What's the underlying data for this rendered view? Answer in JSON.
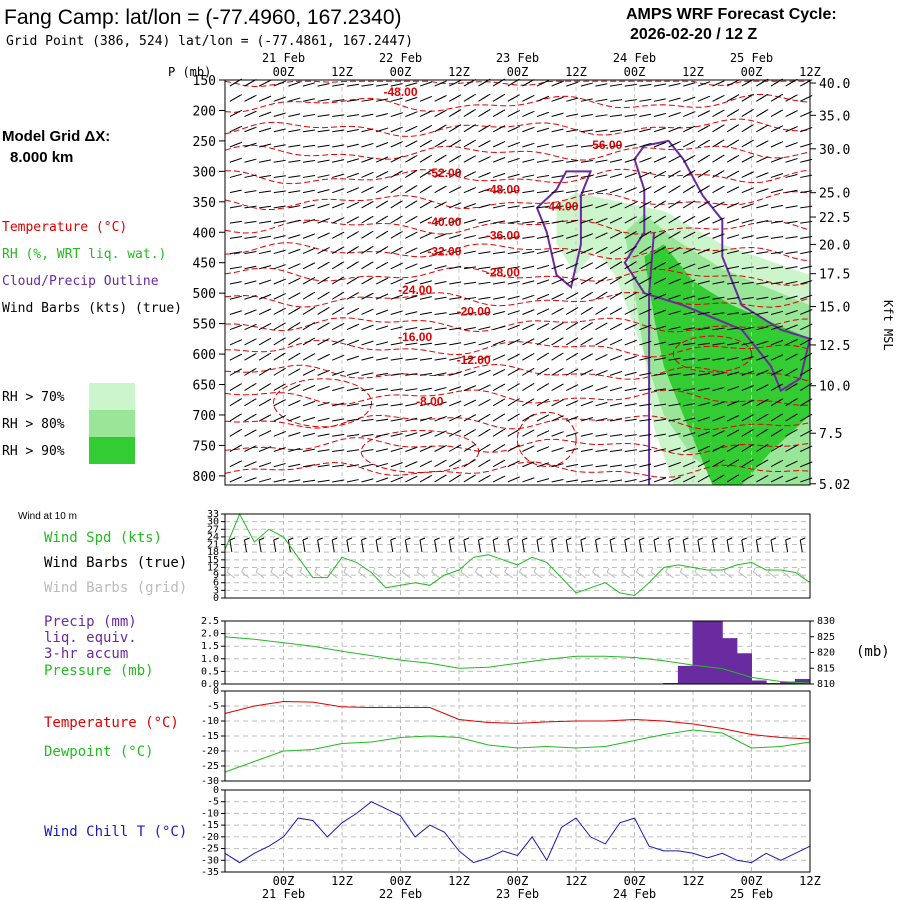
{
  "header": {
    "title": "Fang Camp:  lat/lon = (-77.4960, 167.2340)",
    "subtitle": "Grid Point (386, 524) lat/lon = (-77.4861, 167.2447)",
    "cycle_line1": "AMPS WRF Forecast Cycle:",
    "cycle_line2": "2026-02-20 / 12  Z"
  },
  "left_labels": {
    "model_grid_1": "Model Grid ΔX:",
    "model_grid_2": "8.000 km",
    "temperature": "Temperature (°C)",
    "rh": "RH (%, WRT liq. wat.)",
    "cloud": "Cloud/Precip Outline",
    "wind": "Wind Barbs (kts) (true)",
    "rh70": "RH > 70%",
    "rh80": "RH > 80%",
    "rh90": "RH > 90%"
  },
  "colors": {
    "temp": "#e00000",
    "rh70": "#ccf5cc",
    "rh80": "#99e699",
    "rh90": "#33cc33",
    "cloud": "#6a2aa0",
    "spd": "#22bb22",
    "grid_barb": "#bbbbbb",
    "precip": "#6a2aa0",
    "chill": "#1a1ab8"
  },
  "time_axis": {
    "top_hours": [
      "00Z",
      "12Z",
      "00Z",
      "12Z",
      "00Z",
      "12Z",
      "00Z",
      "12Z",
      "00Z",
      "12Z"
    ],
    "top_dates": [
      "21 Feb",
      "22 Feb",
      "23 Feb",
      "24 Feb",
      "25 Feb"
    ],
    "bottom_hours": [
      "00Z",
      "12Z",
      "00Z",
      "12Z",
      "00Z",
      "12Z",
      "00Z",
      "12Z",
      "00Z",
      "12Z"
    ],
    "bottom_dates": [
      "21 Feb",
      "22 Feb",
      "23 Feb",
      "24 Feb",
      "25 Feb"
    ],
    "hour_positions": [
      12,
      24,
      36,
      48,
      60,
      72,
      84,
      96,
      108,
      120
    ],
    "date_positions": [
      12,
      36,
      60,
      84,
      108
    ],
    "range": [
      0,
      120
    ]
  },
  "chart_data": [
    {
      "type": "time-height",
      "title": "Fang Camp:  lat/lon = (-77.4960, 167.2340)",
      "ylabel": "P (mb)",
      "y2label": "Kft MSL",
      "pressure_ticks": [
        "150",
        "200",
        "250",
        "300",
        "350",
        "400",
        "450",
        "500",
        "550",
        "600",
        "650",
        "700",
        "750",
        "800"
      ],
      "pressure_values": [
        150,
        200,
        250,
        300,
        350,
        400,
        450,
        500,
        550,
        600,
        650,
        700,
        750,
        800
      ],
      "height_ticks": [
        "40.0",
        "35.0",
        "30.0",
        "25.0",
        "22.5",
        "20.0",
        "17.5",
        "15.0",
        "12.5",
        "10.0",
        "7.5",
        "5.02"
      ],
      "height_pressure": [
        155,
        208,
        263,
        335,
        375,
        420,
        468,
        522,
        585,
        652,
        730,
        813
      ],
      "ylim": [
        150,
        815
      ],
      "temperature_labels": [
        {
          "text": "-48.00",
          "t": 36,
          "p": 170
        },
        {
          "text": "-56.00",
          "t": 78,
          "p": 257
        },
        {
          "text": "-52.00",
          "t": 45,
          "p": 303
        },
        {
          "text": "-48.00",
          "t": 57,
          "p": 330
        },
        {
          "text": "-44.00",
          "t": 69,
          "p": 358
        },
        {
          "text": "-40.00",
          "t": 45,
          "p": 383
        },
        {
          "text": "-36.00",
          "t": 57,
          "p": 405
        },
        {
          "text": "-32.00",
          "t": 45,
          "p": 432
        },
        {
          "text": "-28.00",
          "t": 57,
          "p": 466
        },
        {
          "text": "-24.00",
          "t": 39,
          "p": 495
        },
        {
          "text": "-20.00",
          "t": 51,
          "p": 530
        },
        {
          "text": "-16.00",
          "t": 39,
          "p": 572
        },
        {
          "text": "-12.00",
          "t": 51,
          "p": 610
        },
        {
          "text": "-8.00",
          "t": 42,
          "p": 678
        }
      ],
      "rh_regions": [
        {
          "level": "rh70",
          "points": [
            [
              68,
              355
            ],
            [
              72,
              335
            ],
            [
              78,
              345
            ],
            [
              90,
              365
            ],
            [
              102,
              420
            ],
            [
              120,
              470
            ],
            [
              120,
              815
            ],
            [
              92,
              815
            ],
            [
              88,
              720
            ],
            [
              86,
              600
            ],
            [
              80,
              470
            ],
            [
              76,
              430
            ],
            [
              72,
              470
            ],
            [
              68,
              420
            ]
          ]
        },
        {
          "level": "rh80",
          "points": [
            [
              82,
              400
            ],
            [
              86,
              370
            ],
            [
              92,
              410
            ],
            [
              102,
              460
            ],
            [
              120,
              520
            ],
            [
              120,
              815
            ],
            [
              104,
              815
            ],
            [
              96,
              770
            ],
            [
              90,
              700
            ],
            [
              86,
              600
            ],
            [
              84,
              500
            ]
          ]
        },
        {
          "level": "rh90",
          "points": [
            [
              86,
              440
            ],
            [
              90,
              420
            ],
            [
              96,
              480
            ],
            [
              104,
              520
            ],
            [
              120,
              575
            ],
            [
              120,
              700
            ],
            [
              112,
              760
            ],
            [
              106,
              815
            ],
            [
              100,
              815
            ],
            [
              94,
              700
            ],
            [
              90,
              620
            ],
            [
              88,
              540
            ]
          ]
        }
      ],
      "cloud_outline": [
        [
          [
            68,
            330
          ],
          [
            70,
            300
          ],
          [
            75,
            300
          ],
          [
            73,
            340
          ],
          [
            73,
            420
          ],
          [
            71,
            490
          ],
          [
            68,
            470
          ],
          [
            66,
            400
          ],
          [
            64,
            360
          ]
        ],
        [
          [
            84,
            280
          ],
          [
            86,
            258
          ],
          [
            91,
            250
          ],
          [
            94,
            280
          ],
          [
            98,
            340
          ],
          [
            102,
            380
          ],
          [
            102,
            440
          ],
          [
            106,
            520
          ],
          [
            114,
            560
          ],
          [
            120,
            575
          ],
          [
            118,
            640
          ],
          [
            114,
            660
          ],
          [
            112,
            620
          ],
          [
            106,
            560
          ],
          [
            94,
            520
          ],
          [
            86,
            500
          ],
          [
            82,
            450
          ],
          [
            86,
            400
          ],
          [
            86,
            330
          ]
        ],
        [
          [
            88,
            400
          ],
          [
            87,
            500
          ],
          [
            87,
            815
          ]
        ]
      ]
    },
    {
      "type": "line",
      "title": "Wind at 10 m",
      "series": [
        {
          "name": "Wind Spd (kts)",
          "x": [
            0,
            3,
            6,
            9,
            12,
            15,
            18,
            21,
            24,
            27,
            30,
            33,
            36,
            39,
            42,
            45,
            48,
            51,
            54,
            57,
            60,
            63,
            66,
            69,
            72,
            75,
            78,
            81,
            84,
            87,
            90,
            93,
            96,
            99,
            102,
            105,
            108,
            111,
            114,
            117,
            120
          ],
          "values": [
            19,
            33,
            22,
            27,
            24,
            16,
            8,
            8,
            16,
            14,
            10,
            4,
            5,
            6,
            5,
            9,
            11,
            16,
            17,
            15,
            13,
            16,
            14,
            8,
            2,
            4,
            6,
            2,
            1,
            6,
            12,
            13,
            12,
            11,
            11,
            13,
            14,
            11,
            11,
            10,
            6
          ]
        }
      ],
      "legend": [
        "Wind Spd (kts)",
        "Wind Barbs (true)",
        "Wind Barbs (grid)"
      ],
      "ytick_labels": [
        "33",
        "30",
        "27",
        "24",
        "21",
        "18",
        "15",
        "12",
        "9",
        "6",
        "3",
        "0"
      ],
      "ylim": [
        0,
        33
      ]
    },
    {
      "type": "bar-line",
      "title": "Precip / Pressure",
      "precip": {
        "name": "Precip (mm) liq. equiv. 3-hr accum",
        "bins": [
          [
            90,
            93,
            0.02
          ],
          [
            93,
            96,
            0.7
          ],
          [
            96,
            99,
            2.5
          ],
          [
            99,
            102,
            2.5
          ],
          [
            102,
            105,
            1.8
          ],
          [
            105,
            108,
            1.2
          ],
          [
            108,
            111,
            0.12
          ],
          [
            111,
            114,
            0.02
          ],
          [
            114,
            117,
            0.08
          ],
          [
            117,
            120,
            0.18
          ]
        ]
      },
      "pressure": {
        "name": "Pressure (mb)",
        "x": [
          0,
          6,
          12,
          18,
          24,
          30,
          36,
          42,
          48,
          54,
          60,
          66,
          72,
          78,
          84,
          90,
          96,
          102,
          108,
          114,
          120
        ],
        "values": [
          825.0,
          824.2,
          823.1,
          822.0,
          820.4,
          819.0,
          817.6,
          816.6,
          815.0,
          815.3,
          816.6,
          817.8,
          818.8,
          818.8,
          818.4,
          817.4,
          816.0,
          814.9,
          812.1,
          810.8,
          810.3
        ]
      },
      "legend": [
        "Precip (mm)",
        "liq. equiv.",
        "3-hr accum",
        "Pressure (mb)"
      ],
      "ytick_labels": [
        "2.5",
        "2.0",
        "1.5",
        "1.0",
        "0.5",
        "0.0"
      ],
      "y2tick_labels": [
        "830",
        "825",
        "820",
        "815",
        "810"
      ],
      "y2label": "(mb)",
      "ylim": [
        0,
        2.5
      ],
      "y2lim": [
        810,
        830
      ]
    },
    {
      "type": "line",
      "title": "Temperature / Dewpoint",
      "series": [
        {
          "name": "Temperature (°C)",
          "x": [
            0,
            6,
            12,
            18,
            24,
            30,
            36,
            42,
            48,
            54,
            60,
            66,
            72,
            78,
            84,
            90,
            96,
            102,
            108,
            114,
            120
          ],
          "values": [
            -7.5,
            -5,
            -3.5,
            -3.7,
            -5.3,
            -5.5,
            -5.5,
            -5.5,
            -9.5,
            -10.5,
            -10.8,
            -10.3,
            -10.0,
            -10.0,
            -9.5,
            -10.0,
            -11.0,
            -12.5,
            -14.5,
            -15.5,
            -16.0
          ]
        },
        {
          "name": "Dewpoint (°C)",
          "x": [
            0,
            6,
            12,
            18,
            24,
            30,
            36,
            42,
            48,
            54,
            60,
            66,
            72,
            78,
            84,
            90,
            96,
            102,
            108,
            114,
            120
          ],
          "values": [
            -27,
            -23.5,
            -20,
            -19.5,
            -17.5,
            -17,
            -15.5,
            -15,
            -15.5,
            -18,
            -19,
            -18.5,
            -19,
            -18.5,
            -16.5,
            -14.5,
            -13,
            -14,
            -19,
            -18.5,
            -17
          ]
        }
      ],
      "legend": [
        "Temperature (°C)",
        "Dewpoint (°C)"
      ],
      "ytick_labels": [
        "0",
        "-5",
        "-10",
        "-15",
        "-20",
        "-25",
        "-30"
      ],
      "ylim": [
        -30,
        0
      ]
    },
    {
      "type": "line",
      "title": "Wind Chill",
      "series": [
        {
          "name": "Wind Chill T (°C)",
          "x": [
            0,
            3,
            6,
            9,
            12,
            15,
            18,
            21,
            24,
            27,
            30,
            33,
            36,
            39,
            42,
            45,
            48,
            51,
            54,
            57,
            60,
            63,
            66,
            69,
            72,
            75,
            78,
            81,
            84,
            87,
            90,
            93,
            96,
            99,
            102,
            105,
            108,
            111,
            114,
            117,
            120
          ],
          "values": [
            -27,
            -31,
            -27,
            -24,
            -20,
            -12,
            -13,
            -20,
            -14,
            -10,
            -5,
            -8,
            -11,
            -20,
            -15,
            -18,
            -26,
            -31,
            -29,
            -26,
            -28,
            -20,
            -30,
            -16,
            -12,
            -20,
            -23,
            -14,
            -12,
            -24,
            -26,
            -26,
            -27,
            -29,
            -27,
            -30,
            -31,
            -27,
            -30,
            -27,
            -24
          ]
        }
      ],
      "legend": [
        "Wind Chill T (°C)"
      ],
      "ytick_labels": [
        "0",
        "-5",
        "-10",
        "-15",
        "-20",
        "-25",
        "-30",
        "-35"
      ],
      "ylim": [
        -35,
        0
      ]
    }
  ],
  "panel_labels": {
    "wind10": "Wind at 10 m",
    "wind_spd": "Wind Spd (kts)",
    "wind_true": "Wind Barbs (true)",
    "wind_grid": "Wind Barbs (grid)",
    "precip1": "Precip (mm)",
    "precip2": "liq. equiv.",
    "precip3": "3-hr accum",
    "pressure": "Pressure (mb)",
    "temp": "Temperature (°C)",
    "dew": "Dewpoint (°C)",
    "chill": "Wind Chill T (°C)"
  }
}
